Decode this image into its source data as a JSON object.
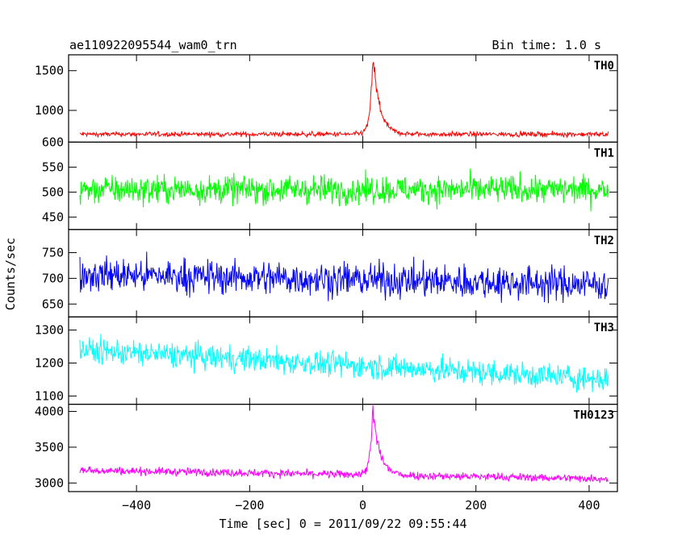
{
  "header": {
    "title": "ae110922095544_wam0_trn",
    "bin_time": "Bin time: 1.0 s"
  },
  "chart_data": {
    "type": "line",
    "xlabel": "Time [sec] 0 = 2011/09/22 09:55:44",
    "ylabel": "Counts/sec",
    "xlim": [
      -520,
      450
    ],
    "x_ticks": [
      -400,
      -200,
      0,
      200,
      400
    ],
    "x_ticklabels": [
      "−400",
      "−200",
      "0",
      "200",
      "400"
    ],
    "x_range": [
      -500,
      434
    ],
    "bin_time": 1.0,
    "series": [
      {
        "name": "TH0",
        "color": "#ff0000",
        "ylim": [
          600,
          1700
        ],
        "y_ticks": [
          600,
          1000,
          1500
        ],
        "y_ticklabels": [
          "600",
          "1000",
          "1500"
        ],
        "baseline": 700,
        "noise": 60,
        "drift": 0,
        "peak": {
          "x": 18,
          "height": 950,
          "rise": 5,
          "decay": 12
        }
      },
      {
        "name": "TH1",
        "color": "#00ff00",
        "ylim": [
          425,
          600
        ],
        "y_ticks": [
          450,
          500,
          550
        ],
        "y_ticklabels": [
          "450",
          "500",
          "550"
        ],
        "baseline": 505,
        "noise": 55,
        "drift": 0,
        "peak": null
      },
      {
        "name": "TH2",
        "color": "#0000ff",
        "ylim": [
          625,
          795
        ],
        "y_ticks": [
          650,
          700,
          750
        ],
        "y_ticklabels": [
          "650",
          "700",
          "750"
        ],
        "baseline": 708,
        "noise": 65,
        "drift": -20,
        "peak": null
      },
      {
        "name": "TH3",
        "color": "#00ffff",
        "ylim": [
          1075,
          1340
        ],
        "y_ticks": [
          1100,
          1200,
          1300
        ],
        "y_ticklabels": [
          "1100",
          "1200",
          "1300"
        ],
        "baseline": 1240,
        "noise": 75,
        "drift": -90,
        "peak": null
      },
      {
        "name": "TH0123",
        "color": "#ff00ff",
        "ylim": [
          2880,
          4100
        ],
        "y_ticks": [
          3000,
          3500,
          4000
        ],
        "y_ticklabels": [
          "3000",
          "3500",
          "4000"
        ],
        "baseline": 3180,
        "noise": 110,
        "drift": -120,
        "peak": {
          "x": 18,
          "height": 900,
          "rise": 5,
          "decay": 12
        }
      }
    ]
  }
}
